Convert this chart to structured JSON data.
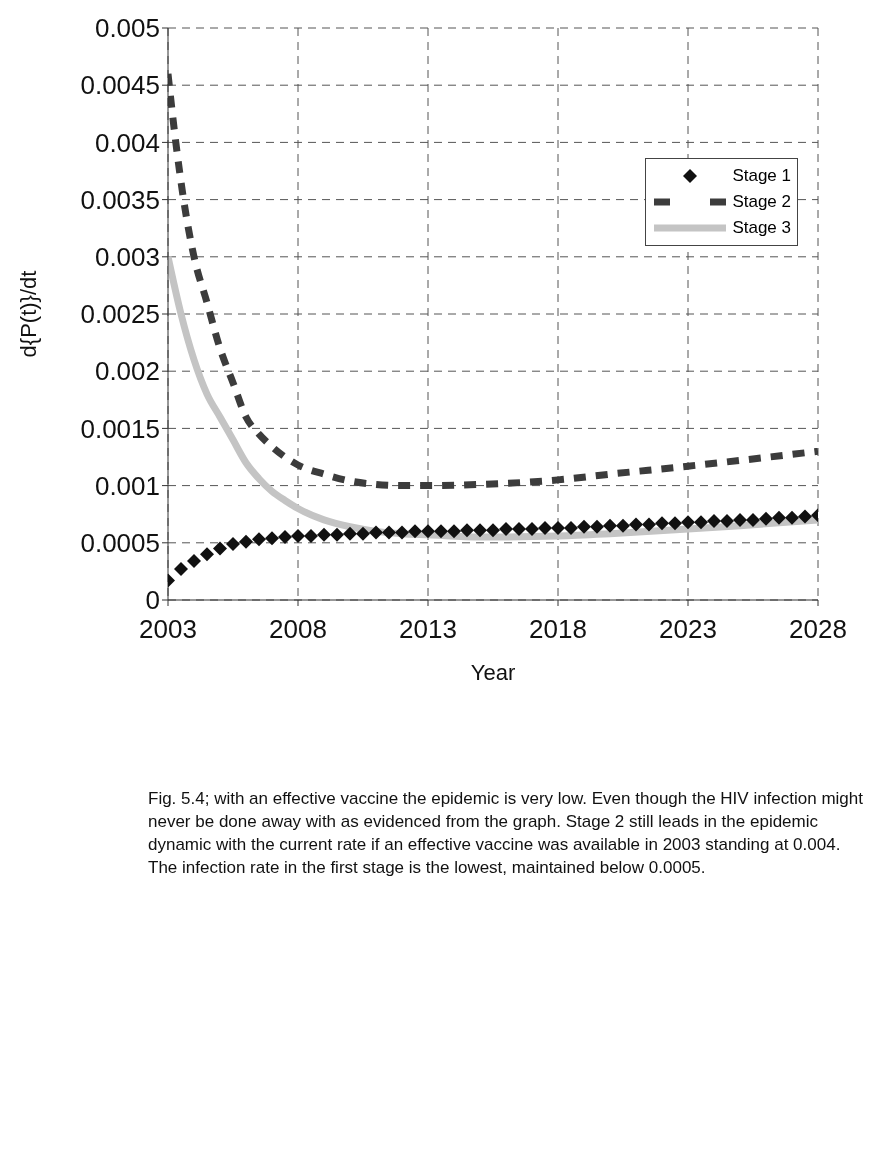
{
  "chart_data": {
    "type": "line",
    "xlabel": "Year",
    "ylabel": "d{P(t)}/dt",
    "xlim": [
      2003,
      2028
    ],
    "xticks": [
      2003,
      2008,
      2013,
      2018,
      2023,
      2028
    ],
    "ylim": [
      0,
      0.005
    ],
    "yticks": [
      0,
      0.0005,
      0.001,
      0.0015,
      0.002,
      0.0025,
      0.003,
      0.0035,
      0.004,
      0.0045,
      0.005
    ],
    "grid": true,
    "legend": "top right",
    "series": [
      {
        "name": "Stage 1",
        "type": "scatter",
        "marker": "diamond",
        "color": "#111111",
        "x": [
          2003,
          2003.5,
          2004,
          2004.5,
          2005,
          2005.5,
          2006,
          2006.5,
          2007,
          2007.5,
          2008,
          2008.5,
          2009,
          2009.5,
          2010,
          2010.5,
          2011,
          2011.5,
          2012,
          2012.5,
          2013,
          2013.5,
          2014,
          2014.5,
          2015,
          2015.5,
          2016,
          2016.5,
          2017,
          2017.5,
          2018,
          2018.5,
          2019,
          2019.5,
          2020,
          2020.5,
          2021,
          2021.5,
          2022,
          2022.5,
          2023,
          2023.5,
          2024,
          2024.5,
          2025,
          2025.5,
          2026,
          2026.5,
          2027,
          2027.5,
          2028
        ],
        "values": [
          0.00017,
          0.00027,
          0.00034,
          0.0004,
          0.00045,
          0.00049,
          0.00051,
          0.00053,
          0.00054,
          0.00055,
          0.00056,
          0.00056,
          0.00057,
          0.00057,
          0.00058,
          0.00058,
          0.00059,
          0.00059,
          0.00059,
          0.0006,
          0.0006,
          0.0006,
          0.0006,
          0.00061,
          0.00061,
          0.00061,
          0.00062,
          0.00062,
          0.00062,
          0.00063,
          0.00063,
          0.00063,
          0.00064,
          0.00064,
          0.00065,
          0.00065,
          0.00066,
          0.00066,
          0.00067,
          0.00067,
          0.00068,
          0.00068,
          0.00069,
          0.00069,
          0.0007,
          0.0007,
          0.00071,
          0.00072,
          0.00072,
          0.00073,
          0.00074
        ]
      },
      {
        "name": "Stage 2",
        "type": "line",
        "line_style": "dashed",
        "color": "#3c3c3c",
        "x": [
          2003,
          2003.3,
          2003.6,
          2004,
          2004.5,
          2005,
          2005.5,
          2006,
          2006.5,
          2007,
          2007.5,
          2008,
          2009,
          2010,
          2011,
          2012,
          2013,
          2015,
          2018,
          2020,
          2023,
          2025,
          2028
        ],
        "values": [
          0.0046,
          0.004,
          0.0035,
          0.003,
          0.0026,
          0.0022,
          0.0019,
          0.0016,
          0.00145,
          0.00134,
          0.00125,
          0.00118,
          0.0011,
          0.00104,
          0.00101,
          0.001,
          0.001,
          0.00101,
          0.00105,
          0.0011,
          0.00117,
          0.00122,
          0.0013
        ]
      },
      {
        "name": "Stage 3",
        "type": "line",
        "line_style": "solid",
        "color": "#c4c4c4",
        "x": [
          2003,
          2003.5,
          2004,
          2004.5,
          2005,
          2005.5,
          2006,
          2006.5,
          2007,
          2007.5,
          2008,
          2009,
          2010,
          2011,
          2012,
          2013,
          2015,
          2018,
          2020,
          2023,
          2025,
          2028
        ],
        "values": [
          0.003,
          0.0025,
          0.0021,
          0.0018,
          0.0016,
          0.0014,
          0.0012,
          0.00106,
          0.00095,
          0.00087,
          0.0008,
          0.0007,
          0.00064,
          0.0006,
          0.00058,
          0.00057,
          0.00055,
          0.00056,
          0.00058,
          0.00062,
          0.00065,
          0.0007
        ]
      }
    ],
    "annotations": [
      "Fig. 5.4; with an effective vaccine the epidemic is very low. Even though the HIV infection might never be done away with as evidenced from the graph. Stage 2 still leads in the epidemic dynamic with the current rate if an effective vaccine was available in 2003 standing at 0.004. The infection rate in the first stage is the lowest, maintained below 0.0005."
    ]
  }
}
